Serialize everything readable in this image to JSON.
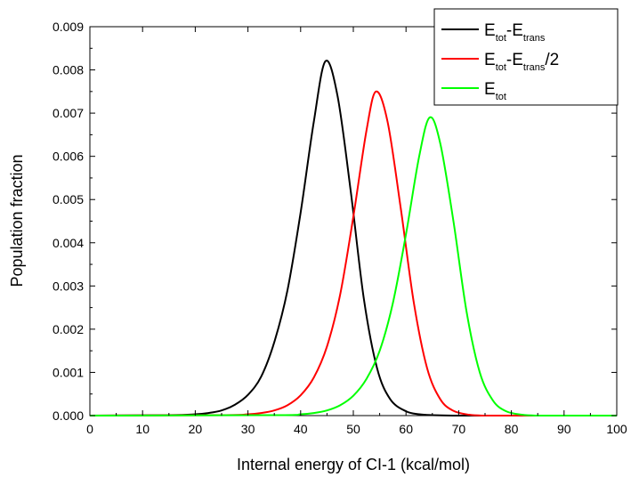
{
  "chart_data": {
    "type": "line",
    "xlabel": "Internal energy of CI-1 (kcal/mol)",
    "ylabel": "Population fraction",
    "xlim": [
      0,
      100
    ],
    "ylim": [
      0,
      0.009
    ],
    "xticks": [
      "0",
      "10",
      "20",
      "30",
      "40",
      "50",
      "60",
      "70",
      "80",
      "90",
      "100"
    ],
    "yticks": [
      "0.000",
      "0.001",
      "0.002",
      "0.003",
      "0.004",
      "0.005",
      "0.006",
      "0.007",
      "0.008",
      "0.009"
    ],
    "grid": false,
    "legend_position": "top-right",
    "series": [
      {
        "name": "Etot-Etrans",
        "legend_parts": [
          [
            "E",
            "n"
          ],
          [
            "tot",
            "s"
          ],
          [
            "-E",
            "n"
          ],
          [
            "trans",
            "s"
          ]
        ],
        "color": "#000000",
        "x": [
          0,
          15,
          20,
          22.5,
          25,
          27.5,
          30,
          32.5,
          35,
          37.5,
          40,
          42.5,
          44.7,
          47,
          49.5,
          52,
          54.5,
          57,
          60,
          62.5,
          65,
          70,
          80,
          100
        ],
        "y": [
          0,
          1e-05,
          3e-05,
          6e-05,
          0.00012,
          0.00025,
          0.00048,
          0.0009,
          0.0017,
          0.0029,
          0.0047,
          0.0068,
          0.0082,
          0.0074,
          0.0052,
          0.0027,
          0.0011,
          0.00038,
          0.0001,
          3e-05,
          1e-05,
          0,
          0,
          0
        ]
      },
      {
        "name": "Etot-Etrans/2",
        "legend_parts": [
          [
            "E",
            "n"
          ],
          [
            "tot",
            "s"
          ],
          [
            "-E",
            "n"
          ],
          [
            "trans",
            "s"
          ],
          [
            "/2",
            "n"
          ]
        ],
        "color": "#ff0000",
        "x": [
          0,
          25,
          30,
          32.5,
          35,
          37.5,
          40,
          42.5,
          45,
          47.5,
          50,
          52.5,
          54.3,
          56.5,
          59,
          61.5,
          64,
          66.5,
          69,
          72,
          75,
          80,
          100
        ],
        "y": [
          0,
          1e-05,
          3e-05,
          6e-05,
          0.00012,
          0.00024,
          0.00047,
          0.00088,
          0.0016,
          0.0028,
          0.0046,
          0.0066,
          0.0075,
          0.0068,
          0.0048,
          0.0026,
          0.0011,
          0.00038,
          0.00011,
          2e-05,
          0,
          0,
          0
        ]
      },
      {
        "name": "Etot",
        "legend_parts": [
          [
            "E",
            "n"
          ],
          [
            "tot",
            "s"
          ]
        ],
        "color": "#00ff00",
        "x": [
          0,
          35,
          40,
          42.5,
          45,
          47.5,
          50,
          52.5,
          55,
          57.5,
          60,
          62.5,
          64.5,
          66.5,
          69,
          71.5,
          74,
          76.5,
          79,
          82,
          85,
          90,
          100
        ],
        "y": [
          0,
          1e-05,
          3e-05,
          6e-05,
          0.00012,
          0.00024,
          0.00046,
          0.00085,
          0.0015,
          0.0026,
          0.0042,
          0.006,
          0.0069,
          0.0063,
          0.0045,
          0.0024,
          0.001,
          0.00035,
          0.0001,
          2e-05,
          0,
          0,
          0
        ]
      }
    ]
  }
}
